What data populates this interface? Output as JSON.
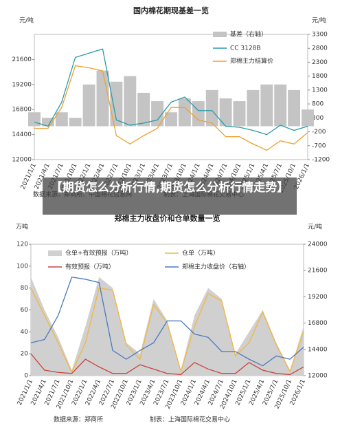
{
  "banner": "【期货怎么分析行情,期货怎么分析行情走势】",
  "chart_data": [
    {
      "type": "combo",
      "title": "国内棉花期现基差一览",
      "y_label": "元/吨",
      "y2_label": "元/吨",
      "source": "数据来源：郑商所、中国棉花信息网",
      "credit": "制表：上海国际棉花交易中心",
      "categories": [
        "2021/1/1",
        "2021/4/1",
        "2021/7/1",
        "2021/10/1",
        "2022/1/1",
        "2022/4/1",
        "2022/7/1",
        "2022/10/1",
        "2023/1/1",
        "2023/4/1",
        "2023/7/1",
        "2023/10/1",
        "2024/1/1",
        "2024/4/1",
        "2024/7/1",
        "2024/10/1",
        "2025/1/1",
        "2025/4/1",
        "2025/7/1",
        "2025/10/1",
        "2026/1/1"
      ],
      "ylim": [
        12000,
        24000
      ],
      "yticks": [
        12000,
        14400,
        16800,
        19200,
        21600
      ],
      "y2lim": [
        -1200,
        3300
      ],
      "y2ticks": [
        -1200,
        -700,
        -200,
        300,
        800,
        1300,
        1800,
        2300,
        2800,
        3300
      ],
      "series": [
        {
          "name": "基差（右轴）",
          "type": "bar",
          "axis": "y2",
          "color": "#c4c4c4",
          "values": [
            500,
            300,
            500,
            300,
            1500,
            2000,
            1600,
            1800,
            1200,
            900,
            500,
            1000,
            900,
            1300,
            1000,
            900,
            1300,
            1500,
            1500,
            1300,
            600
          ]
        },
        {
          "name": "CC 3128B",
          "type": "line",
          "color": "#2a9aa8",
          "values": [
            15600,
            15200,
            17500,
            21800,
            22200,
            22600,
            15800,
            15300,
            15500,
            15800,
            17500,
            18000,
            16700,
            16700,
            15200,
            15100,
            14800,
            14400,
            15300,
            14800,
            15200
          ]
        },
        {
          "name": "郑棉主力结算价",
          "type": "line",
          "color": "#f0a030",
          "values": [
            15000,
            15000,
            17000,
            21000,
            20800,
            20500,
            14300,
            13500,
            14300,
            15000,
            17000,
            17000,
            15800,
            15500,
            14200,
            14200,
            13500,
            12900,
            13800,
            13500,
            14600
          ]
        }
      ]
    },
    {
      "type": "combo",
      "title": "郑棉主力收盘价和仓单数量一览",
      "y_label": "万吨",
      "y2_label": "元/吨",
      "source": "数据来源：郑商所",
      "credit": "制表：上海国际棉花交易中心",
      "categories": [
        "2021/1/1",
        "2021/4/1",
        "2021/7/1",
        "2021/10/1",
        "2022/1/1",
        "2022/4/1",
        "2022/7/1",
        "2022/10/1",
        "2023/1/1",
        "2023/4/1",
        "2023/7/1",
        "2023/10/1",
        "2024/1/1",
        "2024/4/1",
        "2024/7/1",
        "2024/10/1",
        "2025/1/1",
        "2025/4/1",
        "2025/7/1",
        "2025/10/1",
        "2026/1/1"
      ],
      "ylim": [
        0,
        120
      ],
      "yticks": [
        0,
        20,
        40,
        60,
        80,
        100,
        120
      ],
      "y2lim": [
        12000,
        24000
      ],
      "y2ticks": [
        12000,
        14400,
        16800,
        19200,
        21600,
        24000
      ],
      "series": [
        {
          "name": "仓单+有效预报（万吨）",
          "type": "area",
          "color": "#d0d0d0",
          "values": [
            90,
            60,
            35,
            5,
            45,
            90,
            80,
            30,
            20,
            70,
            50,
            5,
            55,
            80,
            70,
            20,
            40,
            60,
            30,
            5,
            45
          ]
        },
        {
          "name": "仓单（万吨）",
          "type": "line",
          "color": "#f3b73a",
          "values": [
            80,
            55,
            30,
            3,
            30,
            80,
            78,
            28,
            15,
            65,
            48,
            4,
            45,
            75,
            68,
            18,
            30,
            58,
            28,
            4,
            40
          ]
        },
        {
          "name": "有效预报（万吨）",
          "type": "line",
          "color": "#c8453a",
          "values": [
            20,
            5,
            3,
            2,
            15,
            8,
            2,
            2,
            10,
            6,
            2,
            1,
            12,
            6,
            2,
            2,
            12,
            5,
            2,
            1,
            8
          ]
        },
        {
          "name": "郑棉主力收盘价（右轴）",
          "type": "line",
          "axis": "y2",
          "color": "#4a78c0",
          "values": [
            15000,
            15300,
            17500,
            21000,
            20800,
            20500,
            14300,
            13500,
            14300,
            15000,
            17000,
            17000,
            15800,
            15500,
            14200,
            14200,
            13500,
            12900,
            13800,
            13500,
            14600
          ]
        }
      ]
    }
  ]
}
